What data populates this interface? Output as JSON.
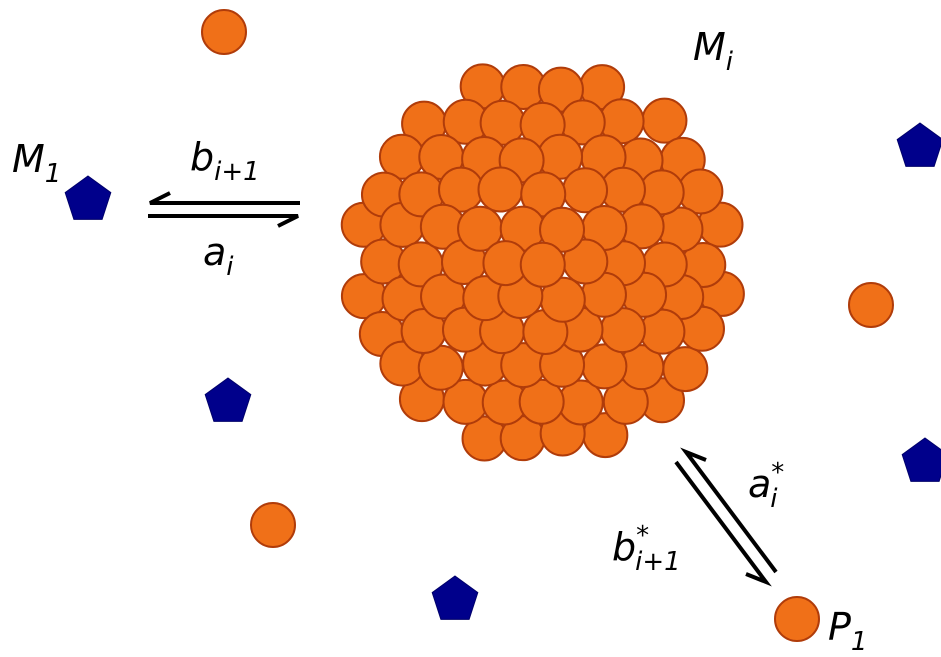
{
  "labels": {
    "m_i": {
      "base": "M",
      "sub": "i"
    },
    "m_1": {
      "base": "M",
      "sub": "1"
    },
    "b_next": {
      "base": "b",
      "sub": "i+1"
    },
    "a_i": {
      "base": "a",
      "sub": "i"
    },
    "a_star": {
      "base": "a",
      "sup": "*",
      "sub": "i"
    },
    "b_star": {
      "base": "b",
      "sup": "*",
      "sub": "i+1"
    },
    "p_1": {
      "base": "P",
      "sub": "1"
    }
  }
}
